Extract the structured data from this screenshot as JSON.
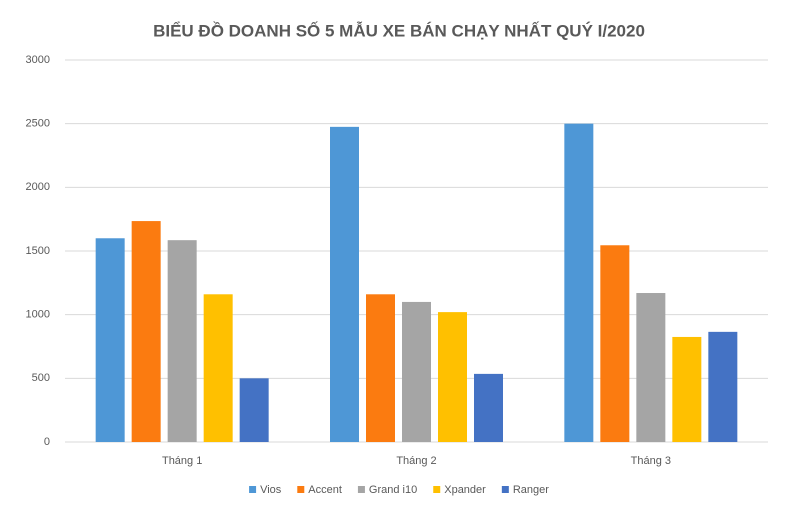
{
  "chart_data": {
    "type": "bar",
    "title": "BIỂU ĐỒ DOANH SỐ 5 MẪU XE BÁN CHẠY NHẤT QUÝ I/2020",
    "categories": [
      "Tháng 1",
      "Tháng 2",
      "Tháng 3"
    ],
    "series": [
      {
        "name": "Vios",
        "color": "#4e97d6",
        "values": [
          1600,
          2475,
          2500
        ]
      },
      {
        "name": "Accent",
        "color": "#fb7b10",
        "values": [
          1735,
          1160,
          1545
        ]
      },
      {
        "name": "Grand i10",
        "color": "#a5a5a5",
        "values": [
          1585,
          1100,
          1170
        ]
      },
      {
        "name": "Xpander",
        "color": "#ffc000",
        "values": [
          1160,
          1020,
          825
        ]
      },
      {
        "name": "Ranger",
        "color": "#4472c4",
        "values": [
          500,
          535,
          865
        ]
      }
    ],
    "ylim": [
      0,
      3000
    ],
    "yticks": [
      0,
      500,
      1000,
      1500,
      2000,
      2500,
      3000
    ],
    "grid": true,
    "legend": "bottom"
  }
}
